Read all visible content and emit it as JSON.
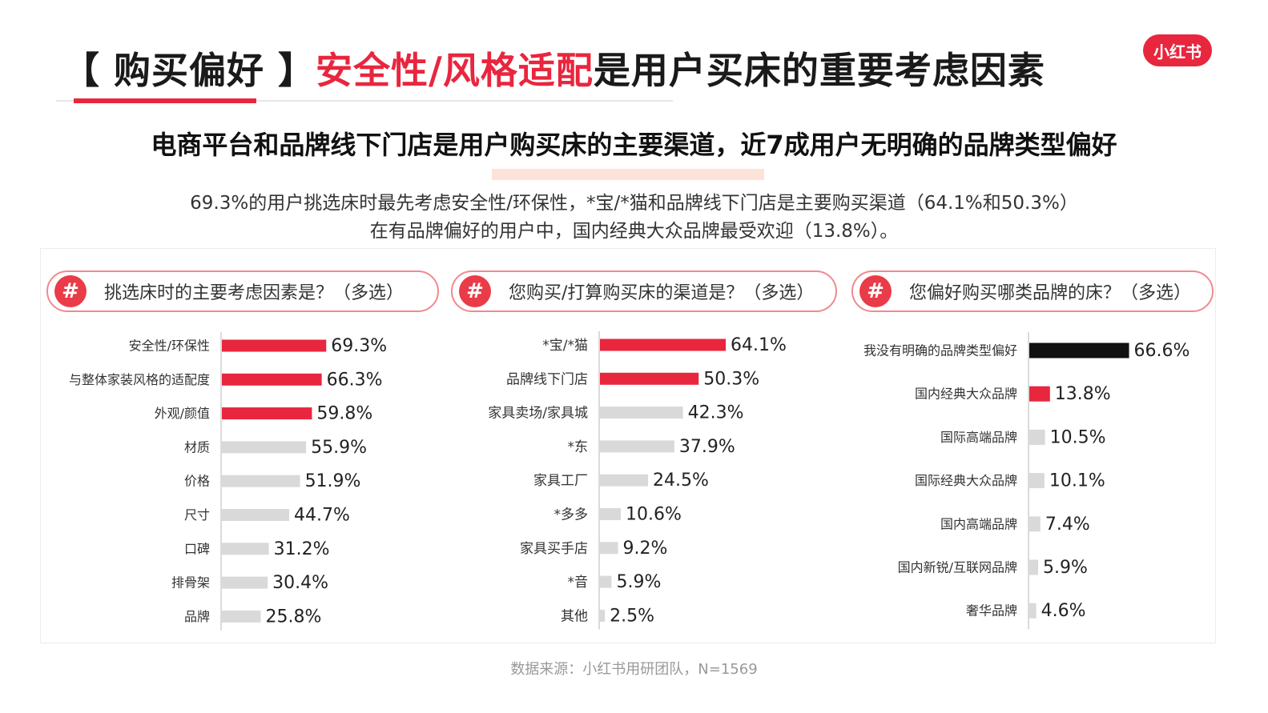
{
  "header": {
    "title_bracket": "【 购买偏好 】",
    "title_highlight": "安全性/风格适配",
    "title_rest": "是用户买床的重要考虑因素",
    "logo": "小红书"
  },
  "subtitle": "电商平台和品牌线下门店是用户购买床的主要渠道，近7成用户无明确的品牌类型偏好",
  "summary": {
    "line1": "69.3%的用户挑选床时最先考虑安全性/环保性，*宝/*猫和品牌线下门店是主要购买渠道（64.1%和50.3%）",
    "line2": "在有品牌偏好的用户中，国内经典大众品牌最受欢迎（13.8%）。"
  },
  "colors": {
    "accent": "#e8263e",
    "gray_bar": "#d9d9d9",
    "black_bar": "#111111"
  },
  "chart_data": [
    {
      "type": "bar",
      "orientation": "horizontal",
      "hash_icon": "#",
      "title": "挑选床时的主要考虑因素是？（多选）",
      "categories": [
        "安全性/环保性",
        "与整体家装风格的适配度",
        "外观/颜值",
        "材质",
        "价格",
        "尺寸",
        "口碑",
        "排骨架",
        "品牌"
      ],
      "values": [
        69.3,
        66.3,
        59.8,
        55.9,
        51.9,
        44.7,
        31.2,
        30.4,
        25.8
      ],
      "labels": [
        "69.3%",
        "66.3%",
        "59.8%",
        "55.9%",
        "51.9%",
        "44.7%",
        "31.2%",
        "30.4%",
        "25.8%"
      ],
      "bar_colors": [
        "#e8263e",
        "#e8263e",
        "#e8263e",
        "#d9d9d9",
        "#d9d9d9",
        "#d9d9d9",
        "#d9d9d9",
        "#d9d9d9",
        "#d9d9d9"
      ],
      "xlim": [
        0,
        100
      ]
    },
    {
      "type": "bar",
      "orientation": "horizontal",
      "hash_icon": "#",
      "title": "您购买/打算购买床的渠道是？（多选）",
      "categories": [
        "*宝/*猫",
        "品牌线下门店",
        "家具卖场/家具城",
        "*东",
        "家具工厂",
        "*多多",
        "家具买手店",
        "*音",
        "其他"
      ],
      "values": [
        64.1,
        50.3,
        42.3,
        37.9,
        24.5,
        10.6,
        9.2,
        5.9,
        2.5
      ],
      "labels": [
        "64.1%",
        "50.3%",
        "42.3%",
        "37.9%",
        "24.5%",
        "10.6%",
        "9.2%",
        "5.9%",
        "2.5%"
      ],
      "bar_colors": [
        "#e8263e",
        "#e8263e",
        "#d9d9d9",
        "#d9d9d9",
        "#d9d9d9",
        "#d9d9d9",
        "#d9d9d9",
        "#d9d9d9",
        "#d9d9d9"
      ],
      "xlim": [
        0,
        100
      ]
    },
    {
      "type": "bar",
      "orientation": "horizontal",
      "hash_icon": "#",
      "title": "您偏好购买哪类品牌的床？（多选）",
      "categories": [
        "我没有明确的品牌类型偏好",
        "国内经典大众品牌",
        "国际高端品牌",
        "国际经典大众品牌",
        "国内高端品牌",
        "国内新锐/互联网品牌",
        "奢华品牌"
      ],
      "values": [
        66.6,
        13.8,
        10.5,
        10.1,
        7.4,
        5.9,
        4.6
      ],
      "labels": [
        "66.6%",
        "13.8%",
        "10.5%",
        "10.1%",
        "7.4%",
        "5.9%",
        "4.6%"
      ],
      "bar_colors": [
        "#111111",
        "#e8263e",
        "#d9d9d9",
        "#d9d9d9",
        "#d9d9d9",
        "#d9d9d9",
        "#d9d9d9"
      ],
      "xlim": [
        0,
        100
      ]
    }
  ],
  "source": "数据来源：小红书用研团队，N=1569"
}
